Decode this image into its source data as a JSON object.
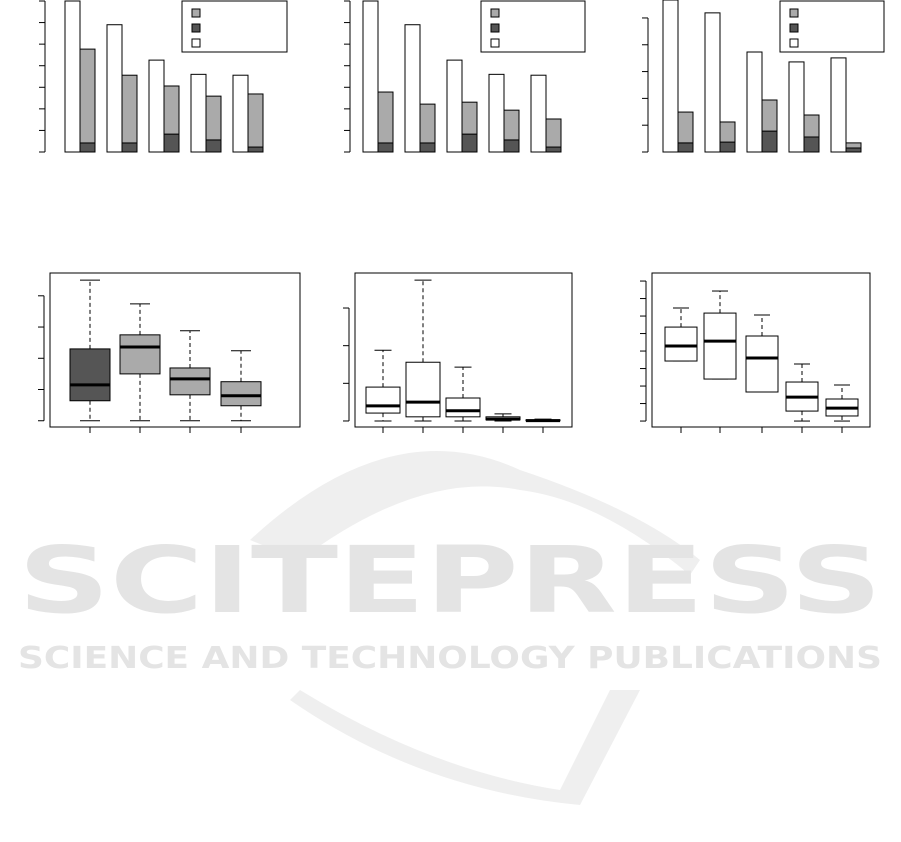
{
  "chart_data": [
    {
      "type": "bar",
      "categories": [
        null,
        null,
        null,
        null,
        null
      ],
      "ylim": [
        0,
        7
      ],
      "yticks": [
        0,
        1,
        2,
        3,
        4,
        5,
        6,
        7
      ],
      "legend": "top-right",
      "series": [
        {
          "color": "#ffffff",
          "stack": 0,
          "values": [
            7.0,
            5.9,
            4.26,
            3.6,
            3.56
          ]
        },
        {
          "color": "#555555",
          "stack": 1,
          "values": [
            0.42,
            0.42,
            0.83,
            0.56,
            0.23
          ]
        },
        {
          "color": "#aaaaaa",
          "stack": 1,
          "values": [
            4.35,
            3.14,
            2.23,
            2.03,
            2.46
          ]
        }
      ]
    },
    {
      "type": "bar",
      "categories": [
        null,
        null,
        null,
        null,
        null
      ],
      "ylim": [
        0,
        7
      ],
      "yticks": [
        0,
        1,
        2,
        3,
        4,
        5,
        6,
        7
      ],
      "legend": "top-right",
      "series": [
        {
          "color": "#ffffff",
          "stack": 0,
          "values": [
            7.0,
            5.9,
            4.26,
            3.6,
            3.56
          ]
        },
        {
          "color": "#555555",
          "stack": 1,
          "values": [
            0.42,
            0.42,
            0.83,
            0.56,
            0.23
          ]
        },
        {
          "color": "#aaaaaa",
          "stack": 1,
          "values": [
            2.36,
            1.8,
            1.48,
            1.38,
            1.3
          ]
        }
      ]
    },
    {
      "type": "bar",
      "categories": [
        null,
        null,
        null,
        null,
        null
      ],
      "ylim": [
        0,
        5.67
      ],
      "yticks": [
        0,
        1,
        2,
        3,
        4,
        5
      ],
      "legend": "top-right",
      "series": [
        {
          "color": "#ffffff",
          "stack": 0,
          "values": [
            5.67,
            5.19,
            3.73,
            3.36,
            3.51
          ]
        },
        {
          "color": "#555555",
          "stack": 1,
          "values": [
            0.34,
            0.37,
            0.78,
            0.56,
            0.15
          ]
        },
        {
          "color": "#aaaaaa",
          "stack": 1,
          "values": [
            1.15,
            0.75,
            1.16,
            0.82,
            0.19
          ]
        }
      ]
    },
    {
      "type": "box",
      "categories": [
        null,
        null,
        null,
        null
      ],
      "ylim": [
        -0.2,
        4.73
      ],
      "yticks": [
        0,
        1,
        2,
        3,
        4
      ],
      "boxes": [
        {
          "color": "#555555",
          "low": 0,
          "q1": 0.64,
          "median": 1.15,
          "q3": 2.3,
          "high": 4.5
        },
        {
          "color": "#aaaaaa",
          "low": 0,
          "q1": 1.5,
          "median": 2.36,
          "q3": 2.75,
          "high": 3.74
        },
        {
          "color": "#aaaaaa",
          "low": 0,
          "q1": 0.83,
          "median": 1.34,
          "q3": 1.69,
          "high": 2.88
        },
        {
          "color": "#aaaaaa",
          "low": 0,
          "q1": 0.48,
          "median": 0.8,
          "q3": 1.25,
          "high": 2.24
        }
      ]
    },
    {
      "type": "box",
      "categories": [
        null,
        null,
        null,
        null,
        null
      ],
      "ylim": [
        -0.16,
        3.93
      ],
      "yticks": [
        0,
        1,
        2,
        3
      ],
      "boxes": [
        {
          "color": "#ffffff",
          "low": 0,
          "q1": 0.21,
          "median": 0.4,
          "q3": 0.9,
          "high": 1.88
        },
        {
          "color": "#ffffff",
          "low": 0,
          "q1": 0.11,
          "median": 0.5,
          "q3": 1.56,
          "high": 3.74
        },
        {
          "color": "#ffffff",
          "low": 0,
          "q1": 0.11,
          "median": 0.27,
          "q3": 0.61,
          "high": 1.43
        },
        {
          "color": "#ffffff",
          "low": 0,
          "q1": 0.03,
          "median": 0.05,
          "q3": 0.11,
          "high": 0.19
        },
        {
          "color": "#ffffff",
          "low": 0,
          "q1": 0.005,
          "median": 0.01,
          "q3": 0.03,
          "high": 0.05
        }
      ]
    },
    {
      "type": "box",
      "categories": [
        null,
        null,
        null,
        null,
        null
      ],
      "ylim": [
        -0.34,
        8.46
      ],
      "yticks": [
        0,
        1,
        2,
        3,
        4,
        5,
        6,
        7,
        8
      ],
      "boxes": [
        {
          "color": "#ffffff",
          "low": 3.43,
          "q1": 3.43,
          "median": 4.29,
          "q3": 5.37,
          "high": 6.46
        },
        {
          "color": "#ffffff",
          "low": 2.4,
          "q1": 2.4,
          "median": 4.57,
          "q3": 6.17,
          "high": 7.43
        },
        {
          "color": "#ffffff",
          "low": 1.66,
          "q1": 1.66,
          "median": 3.6,
          "q3": 4.86,
          "high": 6.06
        },
        {
          "color": "#ffffff",
          "low": 0,
          "q1": 0.57,
          "median": 1.37,
          "q3": 2.23,
          "high": 3.26
        },
        {
          "color": "#ffffff",
          "low": 0,
          "q1": 0.29,
          "median": 0.74,
          "q3": 1.26,
          "high": 2.06
        }
      ]
    }
  ],
  "watermark": {
    "title": "SCITEPRESS",
    "subtitle": "SCIENCE AND TECHNOLOGY PUBLICATIONS"
  }
}
